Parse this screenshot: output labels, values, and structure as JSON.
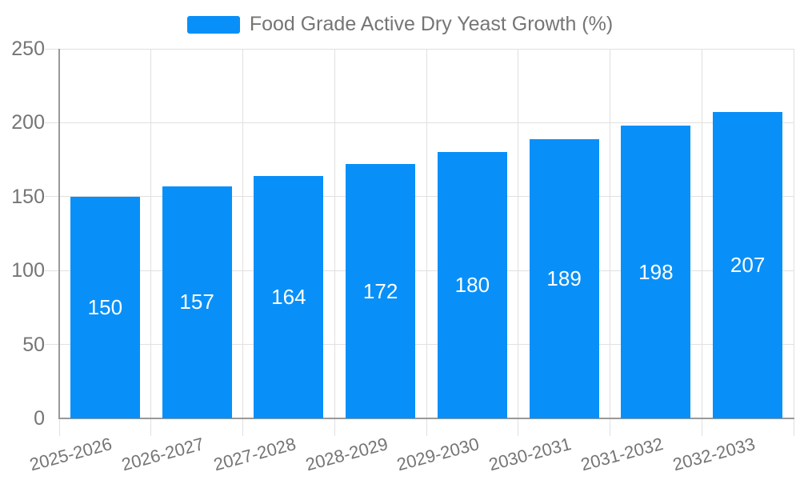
{
  "legend": {
    "label": "Food Grade Active Dry Yeast Growth (%)"
  },
  "chart_data": {
    "type": "bar",
    "title": "Food Grade Active Dry Yeast Growth (%)",
    "categories": [
      "2025-2026",
      "2026-2027",
      "2027-2028",
      "2028-2029",
      "2029-2030",
      "2030-2031",
      "2031-2032",
      "2032-2033"
    ],
    "values": [
      150,
      157,
      164,
      172,
      180,
      189,
      198,
      207
    ],
    "xlabel": "",
    "ylabel": "",
    "ylim": [
      0,
      250
    ],
    "yticks": [
      0,
      50,
      100,
      150,
      200,
      250
    ],
    "grid": true,
    "legend_position": "top",
    "value_labels": "inside-center",
    "colors": {
      "bar": "#0990f8",
      "value_label": "#ffffff",
      "axis_text": "#757575",
      "grid_line": "#e0e0e0",
      "axis_line": "#999999",
      "background": "#ffffff"
    }
  }
}
